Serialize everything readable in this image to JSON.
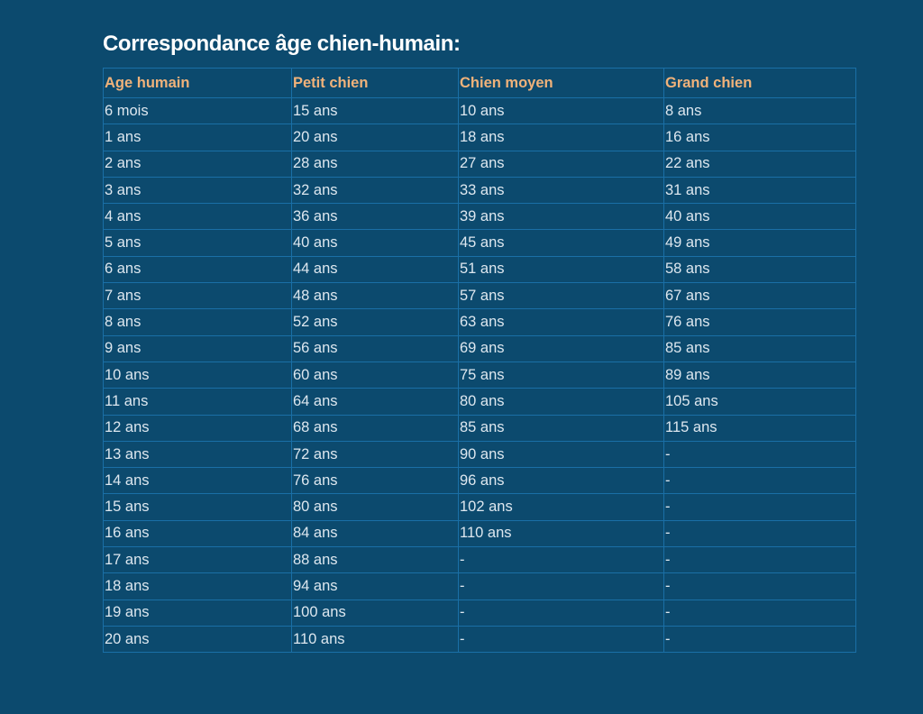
{
  "title": "Correspondance âge chien-humain:",
  "table": {
    "headers": [
      "Age humain",
      "Petit chien",
      "Chien moyen",
      "Grand chien"
    ],
    "rows": [
      [
        "6 mois",
        "15 ans",
        "10 ans",
        "8 ans"
      ],
      [
        "1 ans",
        "20 ans",
        "18 ans",
        "16 ans"
      ],
      [
        "2 ans",
        "28 ans",
        "27 ans",
        "22 ans"
      ],
      [
        "3 ans",
        "32 ans",
        "33 ans",
        "31 ans"
      ],
      [
        "4 ans",
        "36 ans",
        "39 ans",
        "40 ans"
      ],
      [
        "5 ans",
        "40 ans",
        "45 ans",
        "49 ans"
      ],
      [
        "6 ans",
        "44 ans",
        "51 ans",
        "58 ans"
      ],
      [
        "7 ans",
        "48 ans",
        "57 ans",
        "67 ans"
      ],
      [
        "8 ans",
        "52 ans",
        "63 ans",
        "76 ans"
      ],
      [
        "9 ans",
        "56 ans",
        "69 ans",
        "85 ans"
      ],
      [
        "10 ans",
        "60 ans",
        "75 ans",
        "89 ans"
      ],
      [
        "11 ans",
        "64 ans",
        "80 ans",
        "105 ans"
      ],
      [
        "12 ans",
        "68 ans",
        "85 ans",
        "115 ans"
      ],
      [
        "13 ans",
        "72 ans",
        "90 ans",
        "-"
      ],
      [
        "14 ans",
        "76 ans",
        "96 ans",
        "-"
      ],
      [
        "15 ans",
        "80 ans",
        "102 ans",
        "-"
      ],
      [
        "16 ans",
        "84 ans",
        "110 ans",
        "-"
      ],
      [
        "17 ans",
        "88 ans",
        "-",
        "-"
      ],
      [
        "18 ans",
        "94 ans",
        "-",
        "-"
      ],
      [
        "19 ans",
        "100 ans",
        "-",
        "-"
      ],
      [
        "20 ans",
        "110 ans",
        "-",
        "-"
      ]
    ]
  },
  "colors": {
    "background": "#0c4a6e",
    "header_text": "#f0b27a",
    "cell_text": "#dde7ef",
    "border": "#1a6fa6"
  }
}
